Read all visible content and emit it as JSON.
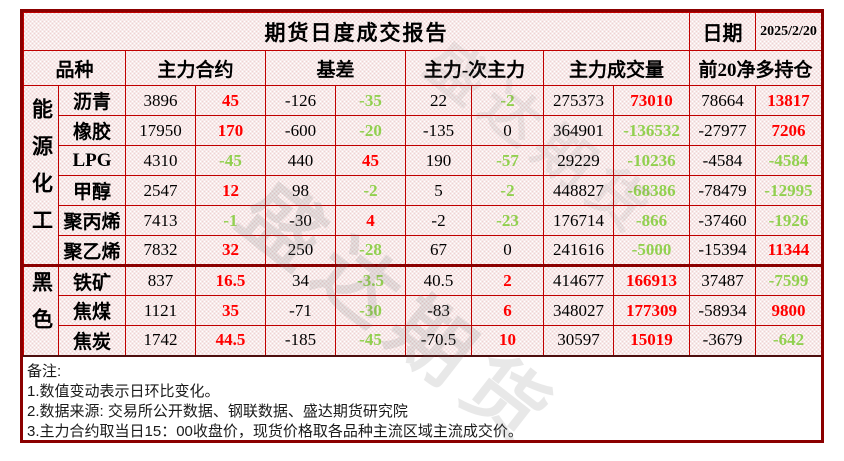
{
  "title": "期货日度成交报告",
  "date": {
    "label": "日期",
    "value": "2025/2/20"
  },
  "table": {
    "columns": [
      "品种",
      "主力合约",
      "基差",
      "主力-次主力",
      "主力成交量",
      "前20净多持仓"
    ],
    "sections": [
      {
        "category": "能源化工",
        "rows": [
          {
            "name": "沥青",
            "cells": [
              {
                "v": "3896",
                "c": "black"
              },
              {
                "v": "45",
                "c": "red"
              },
              {
                "v": "-126",
                "c": "black"
              },
              {
                "v": "-35",
                "c": "green"
              },
              {
                "v": "22",
                "c": "black"
              },
              {
                "v": "-2",
                "c": "green"
              },
              {
                "v": "275373",
                "c": "black"
              },
              {
                "v": "73010",
                "c": "red"
              },
              {
                "v": "78664",
                "c": "black"
              },
              {
                "v": "13817",
                "c": "red"
              }
            ]
          },
          {
            "name": "橡胶",
            "cells": [
              {
                "v": "17950",
                "c": "black"
              },
              {
                "v": "170",
                "c": "red"
              },
              {
                "v": "-600",
                "c": "black"
              },
              {
                "v": "-20",
                "c": "green"
              },
              {
                "v": "-135",
                "c": "black"
              },
              {
                "v": "0",
                "c": "black"
              },
              {
                "v": "364901",
                "c": "black"
              },
              {
                "v": "-136532",
                "c": "green"
              },
              {
                "v": "-27977",
                "c": "black"
              },
              {
                "v": "7206",
                "c": "red"
              }
            ]
          },
          {
            "name": "LPG",
            "cells": [
              {
                "v": "4310",
                "c": "black"
              },
              {
                "v": "-45",
                "c": "green"
              },
              {
                "v": "440",
                "c": "black"
              },
              {
                "v": "45",
                "c": "red"
              },
              {
                "v": "190",
                "c": "black"
              },
              {
                "v": "-57",
                "c": "green"
              },
              {
                "v": "29229",
                "c": "black"
              },
              {
                "v": "-10236",
                "c": "green"
              },
              {
                "v": "-4584",
                "c": "black"
              },
              {
                "v": "-4584",
                "c": "green"
              }
            ]
          },
          {
            "name": "甲醇",
            "cells": [
              {
                "v": "2547",
                "c": "black"
              },
              {
                "v": "12",
                "c": "red"
              },
              {
                "v": "98",
                "c": "black"
              },
              {
                "v": "-2",
                "c": "green"
              },
              {
                "v": "5",
                "c": "black"
              },
              {
                "v": "-2",
                "c": "green"
              },
              {
                "v": "448827",
                "c": "black"
              },
              {
                "v": "-68386",
                "c": "green"
              },
              {
                "v": "-78479",
                "c": "black"
              },
              {
                "v": "-12995",
                "c": "green"
              }
            ]
          },
          {
            "name": "聚丙烯",
            "cells": [
              {
                "v": "7413",
                "c": "black"
              },
              {
                "v": "-1",
                "c": "green"
              },
              {
                "v": "-30",
                "c": "black"
              },
              {
                "v": "4",
                "c": "red"
              },
              {
                "v": "-2",
                "c": "black"
              },
              {
                "v": "-23",
                "c": "green"
              },
              {
                "v": "176714",
                "c": "black"
              },
              {
                "v": "-866",
                "c": "green"
              },
              {
                "v": "-37460",
                "c": "black"
              },
              {
                "v": "-1926",
                "c": "green"
              }
            ]
          },
          {
            "name": "聚乙烯",
            "cells": [
              {
                "v": "7832",
                "c": "black"
              },
              {
                "v": "32",
                "c": "red"
              },
              {
                "v": "250",
                "c": "black"
              },
              {
                "v": "-28",
                "c": "green"
              },
              {
                "v": "67",
                "c": "black"
              },
              {
                "v": "0",
                "c": "black"
              },
              {
                "v": "241616",
                "c": "black"
              },
              {
                "v": "-5000",
                "c": "green"
              },
              {
                "v": "-15394",
                "c": "black"
              },
              {
                "v": "11344",
                "c": "red"
              }
            ]
          }
        ]
      },
      {
        "category": "黑色",
        "rows": [
          {
            "name": "铁矿",
            "cells": [
              {
                "v": "837",
                "c": "black"
              },
              {
                "v": "16.5",
                "c": "red"
              },
              {
                "v": "34",
                "c": "black"
              },
              {
                "v": "-3.5",
                "c": "green"
              },
              {
                "v": "40.5",
                "c": "black"
              },
              {
                "v": "2",
                "c": "red"
              },
              {
                "v": "414677",
                "c": "black"
              },
              {
                "v": "166913",
                "c": "red"
              },
              {
                "v": "37487",
                "c": "black"
              },
              {
                "v": "-7599",
                "c": "green"
              }
            ]
          },
          {
            "name": "焦煤",
            "cells": [
              {
                "v": "1121",
                "c": "black"
              },
              {
                "v": "35",
                "c": "red"
              },
              {
                "v": "-71",
                "c": "black"
              },
              {
                "v": "-30",
                "c": "green"
              },
              {
                "v": "-83",
                "c": "black"
              },
              {
                "v": "6",
                "c": "red"
              },
              {
                "v": "348027",
                "c": "black"
              },
              {
                "v": "177309",
                "c": "red"
              },
              {
                "v": "-58934",
                "c": "black"
              },
              {
                "v": "9800",
                "c": "red"
              }
            ]
          },
          {
            "name": "焦炭",
            "cells": [
              {
                "v": "1742",
                "c": "black"
              },
              {
                "v": "44.5",
                "c": "red"
              },
              {
                "v": "-185",
                "c": "black"
              },
              {
                "v": "-45",
                "c": "green"
              },
              {
                "v": "-70.5",
                "c": "black"
              },
              {
                "v": "10",
                "c": "red"
              },
              {
                "v": "30597",
                "c": "black"
              },
              {
                "v": "15019",
                "c": "red"
              },
              {
                "v": "-3679",
                "c": "black"
              },
              {
                "v": "-642",
                "c": "green"
              }
            ]
          }
        ]
      }
    ]
  },
  "notes": [
    "备注:",
    "1.数值变动表示日环比变化。",
    "2.数据来源: 交易所公开数据、钢联数据、盛达期货研究院",
    "3.主力合约取当日15：00收盘价，现货价格取各品种主流区域主流成交价。"
  ],
  "watermark": "盛达期货",
  "colors": {
    "positive": "#ff0000",
    "negative": "#92d050",
    "grid": "#c00000",
    "border_strong": "#8b0000",
    "pattern": "#efd3d3",
    "text": "#000000"
  }
}
